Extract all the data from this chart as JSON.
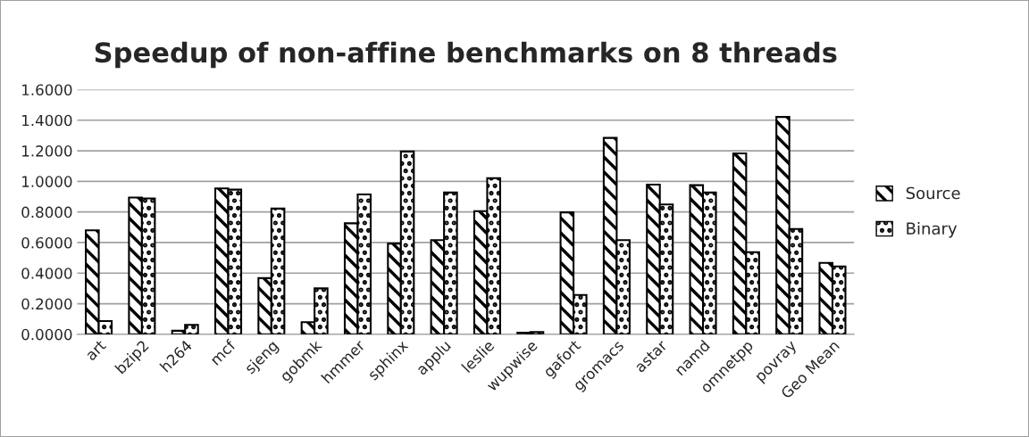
{
  "chart_data": {
    "type": "bar",
    "title": "Speedup of non-affine benchmarks on 8 threads",
    "categories": [
      "art",
      "bzip2",
      "h264",
      "mcf",
      "sjeng",
      "gobmk",
      "hmmer",
      "sphinx",
      "applu",
      "leslie",
      "wupwise",
      "gafort",
      "gromacs",
      "astar",
      "namd",
      "omnetpp",
      "povray",
      "Geo Mean"
    ],
    "series": [
      {
        "name": "Source",
        "color": "#000000",
        "values": [
          0.68,
          0.894,
          0.023,
          0.954,
          0.367,
          0.079,
          0.726,
          0.593,
          0.616,
          0.805,
          0.01,
          0.797,
          1.284,
          0.979,
          0.975,
          1.183,
          1.421,
          0.467
        ]
      },
      {
        "name": "Binary",
        "color": "#000000",
        "values": [
          0.087,
          0.888,
          0.062,
          0.946,
          0.822,
          0.3,
          0.915,
          1.195,
          0.927,
          1.021,
          0.015,
          0.257,
          0.616,
          0.849,
          0.927,
          0.537,
          0.689,
          0.444
        ]
      }
    ],
    "ylim": [
      0,
      1.6
    ],
    "yticks": [
      {
        "value": 0,
        "label": "0.0000"
      },
      {
        "value": 0.2,
        "label": "0.2000"
      },
      {
        "value": 0.4,
        "label": "0.4000"
      },
      {
        "value": 0.6,
        "label": "0.6000"
      },
      {
        "value": 0.8,
        "label": "0.8000"
      },
      {
        "value": 1.0,
        "label": "1.0000"
      },
      {
        "value": 1.2,
        "label": "1.2000"
      },
      {
        "value": 1.4,
        "label": "1.4000"
      },
      {
        "value": 1.6,
        "label": "1.6000"
      }
    ],
    "grid": "y",
    "legend": "right"
  }
}
